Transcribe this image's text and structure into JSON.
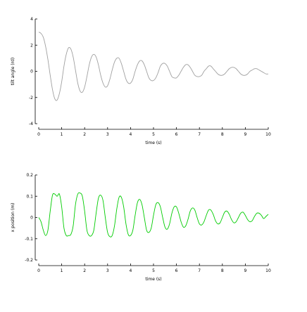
{
  "chart_data": [
    {
      "type": "line",
      "title": "",
      "xlabel": "time (s)",
      "ylabel": "tilt angle (rd)",
      "xlim": [
        0,
        10
      ],
      "ylim": [
        -4,
        4
      ],
      "xticks": [
        0,
        1,
        2,
        3,
        4,
        5,
        6,
        7,
        8,
        9,
        10
      ],
      "yticks": [
        -4,
        -2,
        0,
        2,
        4
      ],
      "grid": false,
      "legend": "none",
      "series": [
        {
          "color": "#a0a0a0",
          "x": [
            0,
            0.1,
            0.2,
            0.3,
            0.4,
            0.5,
            0.6,
            0.7,
            0.8,
            0.9,
            1.0,
            1.1,
            1.2,
            1.3,
            1.4,
            1.5,
            1.6,
            1.7,
            1.8,
            1.9,
            2.0,
            2.1,
            2.2,
            2.3,
            2.4,
            2.5,
            2.6,
            2.7,
            2.8,
            2.9,
            3.0,
            3.1,
            3.2,
            3.3,
            3.4,
            3.5,
            3.6,
            3.7,
            3.8,
            3.9,
            4.0,
            4.1,
            4.2,
            4.3,
            4.4,
            4.5,
            4.6,
            4.7,
            4.8,
            4.9,
            5.0,
            5.1,
            5.2,
            5.3,
            5.4,
            5.5,
            5.6,
            5.7,
            5.8,
            5.9,
            6.0,
            6.1,
            6.2,
            6.3,
            6.4,
            6.5,
            6.6,
            6.7,
            6.8,
            6.9,
            7.0,
            7.1,
            7.2,
            7.3,
            7.4,
            7.5,
            7.6,
            7.7,
            7.8,
            7.9,
            8.0,
            8.1,
            8.2,
            8.3,
            8.4,
            8.5,
            8.6,
            8.7,
            8.8,
            8.9,
            9.0,
            9.1,
            9.2,
            9.3,
            9.4,
            9.5,
            9.6,
            9.7,
            9.8,
            9.9,
            10.0
          ],
          "y": [
            3.0,
            2.9,
            2.6,
            1.9,
            0.9,
            -0.3,
            -1.4,
            -2.1,
            -2.2,
            -1.7,
            -0.8,
            0.4,
            1.3,
            1.8,
            1.7,
            1.1,
            0.1,
            -0.9,
            -1.5,
            -1.6,
            -1.2,
            -0.4,
            0.5,
            1.1,
            1.3,
            1.1,
            0.5,
            -0.3,
            -0.9,
            -1.2,
            -1.1,
            -0.6,
            0.1,
            0.7,
            1.0,
            1.0,
            0.6,
            0.0,
            -0.6,
            -0.9,
            -0.9,
            -0.6,
            0.0,
            0.5,
            0.8,
            0.8,
            0.5,
            0.0,
            -0.5,
            -0.7,
            -0.7,
            -0.5,
            -0.1,
            0.4,
            0.6,
            0.6,
            0.4,
            0.0,
            -0.4,
            -0.5,
            -0.5,
            -0.3,
            0.0,
            0.3,
            0.5,
            0.5,
            0.3,
            0.0,
            -0.3,
            -0.4,
            -0.4,
            -0.3,
            0.0,
            0.2,
            0.4,
            0.4,
            0.2,
            0.0,
            -0.2,
            -0.3,
            -0.3,
            -0.2,
            0.0,
            0.2,
            0.3,
            0.3,
            0.2,
            0.0,
            -0.2,
            -0.3,
            -0.3,
            -0.2,
            0.0,
            0.1,
            0.2,
            0.2,
            0.1,
            0.0,
            -0.1,
            -0.2,
            -0.2
          ]
        }
      ]
    },
    {
      "type": "line",
      "title": "",
      "xlabel": "time (s)",
      "ylabel": "x position (m)",
      "xlim": [
        0,
        10
      ],
      "ylim": [
        -0.2,
        0.2
      ],
      "xticks": [
        0,
        1,
        2,
        3,
        4,
        5,
        6,
        7,
        8,
        9,
        10
      ],
      "yticks": [
        -0.2,
        -0.1,
        0,
        0.1,
        0.2
      ],
      "ytick_labels": [
        "-0.2",
        "-0.1",
        "0",
        "0.1",
        "0.2"
      ],
      "grid": false,
      "legend": "none",
      "series": [
        {
          "color": "#00cc00",
          "x": [
            0,
            0.1,
            0.2,
            0.3,
            0.4,
            0.5,
            0.6,
            0.7,
            0.8,
            0.9,
            1.0,
            1.1,
            1.2,
            1.3,
            1.4,
            1.5,
            1.6,
            1.7,
            1.8,
            1.9,
            2.0,
            2.1,
            2.2,
            2.3,
            2.4,
            2.5,
            2.6,
            2.7,
            2.8,
            2.9,
            3.0,
            3.1,
            3.2,
            3.3,
            3.4,
            3.5,
            3.6,
            3.7,
            3.8,
            3.9,
            4.0,
            4.1,
            4.2,
            4.3,
            4.4,
            4.5,
            4.6,
            4.7,
            4.8,
            4.9,
            5.0,
            5.1,
            5.2,
            5.3,
            5.4,
            5.5,
            5.6,
            5.7,
            5.8,
            5.9,
            6.0,
            6.1,
            6.2,
            6.3,
            6.4,
            6.5,
            6.6,
            6.7,
            6.8,
            6.9,
            7.0,
            7.1,
            7.2,
            7.3,
            7.4,
            7.5,
            7.6,
            7.7,
            7.8,
            7.9,
            8.0,
            8.1,
            8.2,
            8.3,
            8.4,
            8.5,
            8.6,
            8.7,
            8.8,
            8.9,
            9.0,
            9.1,
            9.2,
            9.3,
            9.4,
            9.5,
            9.6,
            9.7,
            9.8,
            9.9,
            10.0
          ],
          "y": [
            0.0,
            -0.02,
            -0.06,
            -0.085,
            -0.06,
            0.03,
            0.105,
            0.11,
            0.1,
            0.11,
            0.05,
            -0.05,
            -0.085,
            -0.085,
            -0.08,
            -0.04,
            0.06,
            0.11,
            0.115,
            0.1,
            0.03,
            -0.06,
            -0.085,
            -0.085,
            -0.06,
            0.02,
            0.09,
            0.105,
            0.08,
            0.0,
            -0.07,
            -0.09,
            -0.085,
            -0.04,
            0.04,
            0.095,
            0.095,
            0.05,
            -0.03,
            -0.08,
            -0.085,
            -0.06,
            0.01,
            0.07,
            0.085,
            0.06,
            0.0,
            -0.06,
            -0.07,
            -0.05,
            0.01,
            0.06,
            0.07,
            0.05,
            0.0,
            -0.045,
            -0.055,
            -0.03,
            0.02,
            0.05,
            0.05,
            0.02,
            -0.02,
            -0.045,
            -0.04,
            -0.01,
            0.03,
            0.045,
            0.035,
            0.0,
            -0.03,
            -0.035,
            -0.02,
            0.01,
            0.035,
            0.035,
            0.015,
            -0.015,
            -0.03,
            -0.025,
            0.0,
            0.025,
            0.03,
            0.015,
            -0.01,
            -0.025,
            -0.02,
            0.0,
            0.02,
            0.025,
            0.01,
            -0.01,
            -0.02,
            -0.015,
            0.005,
            0.02,
            0.02,
            0.01,
            -0.005,
            0.005,
            0.015
          ]
        }
      ]
    }
  ]
}
